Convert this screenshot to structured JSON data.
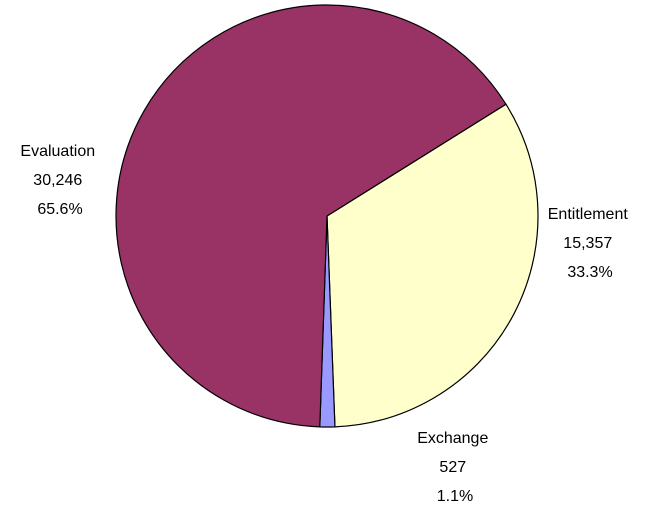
{
  "chart_data": {
    "type": "pie",
    "title": "",
    "legend": "none",
    "slices": [
      {
        "name": "Entitlement",
        "value": 15357,
        "value_label": "15,357",
        "percent_label": "33.3%",
        "color": "#FFFFCC"
      },
      {
        "name": "Exchange",
        "value": 527,
        "value_label": "527",
        "percent_label": "1.1%",
        "color": "#9999FF"
      },
      {
        "name": "Evaluation",
        "value": 30246,
        "value_label": "30,246",
        "percent_label": "65.6%",
        "color": "#993366"
      }
    ]
  }
}
